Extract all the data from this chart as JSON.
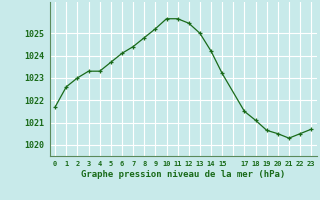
{
  "x": [
    0,
    1,
    2,
    3,
    4,
    5,
    6,
    7,
    8,
    9,
    10,
    11,
    12,
    13,
    14,
    15,
    17,
    18,
    19,
    20,
    21,
    22,
    23
  ],
  "y": [
    1021.7,
    1022.6,
    1023.0,
    1023.3,
    1023.3,
    1023.7,
    1024.1,
    1024.4,
    1024.8,
    1025.2,
    1025.65,
    1025.65,
    1025.45,
    1025.0,
    1024.2,
    1023.2,
    1021.5,
    1021.1,
    1020.65,
    1020.5,
    1020.3,
    1020.5,
    1020.7
  ],
  "line_color": "#1a6b1a",
  "bg_color": "#c8eaea",
  "grid_color": "#ffffff",
  "minor_grid_color": "#ddf4f4",
  "xlabel": "Graphe pression niveau de la mer (hPa)",
  "xlabel_color": "#1a6b1a",
  "tick_color": "#1a6b1a",
  "spine_color": "#5a8a5a",
  "ylim": [
    1019.5,
    1026.4
  ],
  "ytick_values": [
    1020,
    1021,
    1022,
    1023,
    1024,
    1025
  ],
  "figsize": [
    3.2,
    2.0
  ],
  "dpi": 100
}
